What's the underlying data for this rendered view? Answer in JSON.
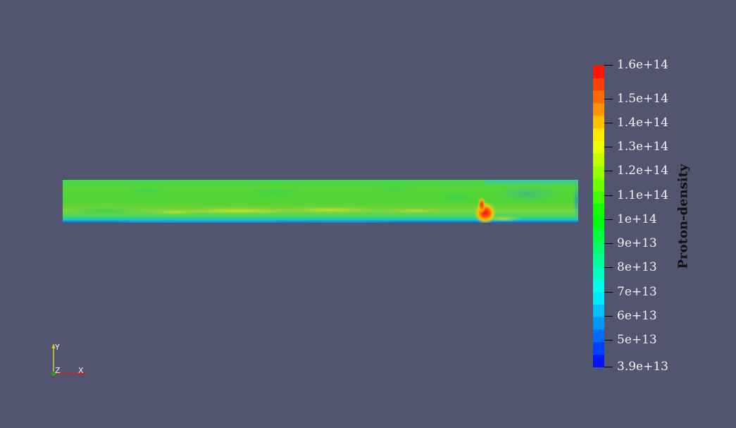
{
  "colorbar": {
    "title": "Proton-density",
    "ticks": [
      {
        "label": "1.6e+14",
        "value": 160000000000000.0
      },
      {
        "label": "1.5e+14",
        "value": 150000000000000.0
      },
      {
        "label": "1.4e+14",
        "value": 140000000000000.0
      },
      {
        "label": "1.3e+14",
        "value": 130000000000000.0
      },
      {
        "label": "1.2e+14",
        "value": 120000000000000.0
      },
      {
        "label": "1.1e+14",
        "value": 110000000000000.0
      },
      {
        "label": "1e+14",
        "value": 100000000000000.0
      },
      {
        "label": "9e+13",
        "value": 90000000000000.0
      },
      {
        "label": "8e+13",
        "value": 80000000000000.0
      },
      {
        "label": "7e+13",
        "value": 70000000000000.0
      },
      {
        "label": "6e+13",
        "value": 60000000000000.0
      },
      {
        "label": "5e+13",
        "value": 50000000000000.0
      },
      {
        "label": "3.9e+13",
        "value": 39000000000000.0
      }
    ],
    "range": [
      39000000000000.0,
      160000000000000.0
    ],
    "colormap": [
      "#0000ff",
      "#0080ff",
      "#00ffff",
      "#00ff80",
      "#00ff00",
      "#80ff00",
      "#ffff00",
      "#ff8000",
      "#ff0000"
    ]
  },
  "axes_triad": {
    "x_label": "X",
    "y_label": "Y",
    "z_label": "Z",
    "x_color": "#d42020",
    "y_color": "#d4d420",
    "z_color": "#20a020"
  },
  "colors": {
    "background": "#525570"
  }
}
